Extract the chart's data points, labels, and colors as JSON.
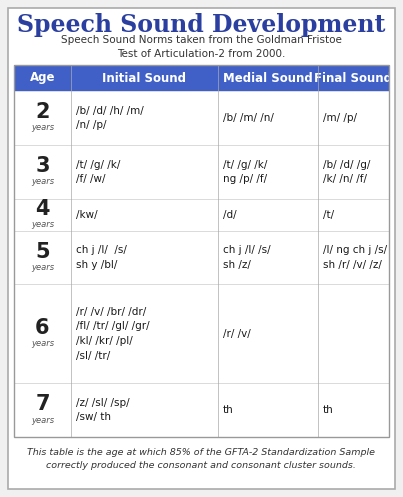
{
  "title": "Speech Sound Development",
  "subtitle": "Speech Sound Norms taken from the Goldman Fristoe\nTest of Articulation-2 from 2000.",
  "footer": "This table is the age at which 85% of the GFTA-2 Standardization Sample\ncorrectly produced the consonant and consonant cluster sounds.",
  "header_bg": "#4060c8",
  "title_color": "#2a3f9f",
  "col_headers": [
    "Age",
    "Initial Sound",
    "Medial Sound",
    "Final Sound"
  ],
  "rows": [
    {
      "age": "2",
      "initial": "/b/ /d/ /h/ /m/\n/n/ /p/",
      "medial": "/b/ /m/ /n/",
      "final": "/m/ /p/"
    },
    {
      "age": "3",
      "initial": "/t/ /g/ /k/\n/f/ /w/",
      "medial": "/t/ /g/ /k/\nng /p/ /f/",
      "final": "/b/ /d/ /g/\n/k/ /n/ /f/"
    },
    {
      "age": "4",
      "initial": "/kw/",
      "medial": "/d/",
      "final": "/t/"
    },
    {
      "age": "5",
      "initial": "ch j /l/  /s/\nsh y /bl/",
      "medial": "ch j /l/ /s/\nsh /z/",
      "final": "/l/ ng ch j /s/\nsh /r/ /v/ /z/"
    },
    {
      "age": "6",
      "initial": "/r/ /v/ /br/ /dr/\n/fl/ /tr/ /gl/ /gr/\n/kl/ /kr/ /pl/\n/sl/ /tr/",
      "medial": "/r/ /v/",
      "final": ""
    },
    {
      "age": "7",
      "initial": "/z/ /sl/ /sp/\n/sw/ th",
      "medial": "th",
      "final": "th"
    }
  ]
}
